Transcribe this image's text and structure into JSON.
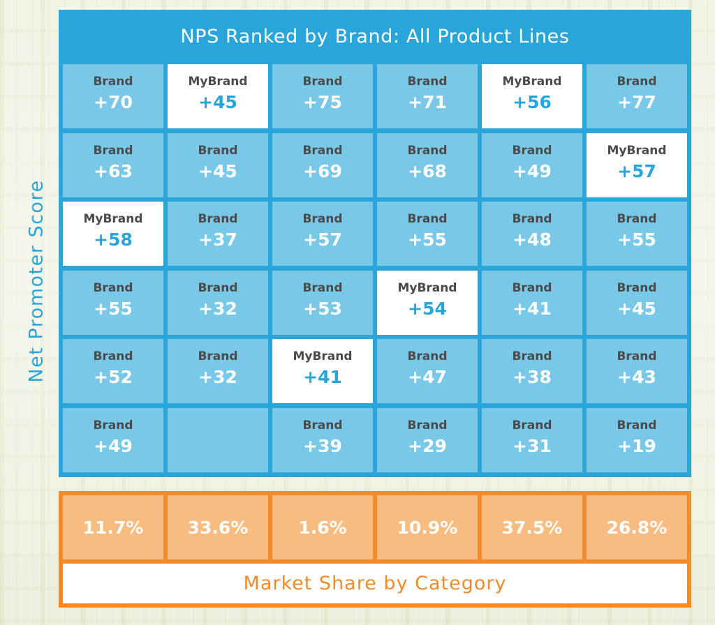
{
  "chart_data": {
    "type": "heatmap",
    "title": "NPS Ranked by Brand: All Product Lines",
    "ylabel": "Net Promoter Score",
    "xlabel": "Market Share by Category",
    "colors": {
      "panel": "#2aa5da",
      "cell": "#79c8e8",
      "highlight_cell": "#ffffff",
      "share_panel": "#f08a2a",
      "share_cell": "#f8bb80"
    },
    "categories": [
      {
        "market_share": "11.7%",
        "entries": [
          {
            "label": "Brand",
            "score": "+70",
            "highlight": false
          },
          {
            "label": "Brand",
            "score": "+63",
            "highlight": false
          },
          {
            "label": "MyBrand",
            "score": "+58",
            "highlight": true
          },
          {
            "label": "Brand",
            "score": "+55",
            "highlight": false
          },
          {
            "label": "Brand",
            "score": "+52",
            "highlight": false
          },
          {
            "label": "Brand",
            "score": "+49",
            "highlight": false
          }
        ]
      },
      {
        "market_share": "33.6%",
        "entries": [
          {
            "label": "MyBrand",
            "score": "+45",
            "highlight": true
          },
          {
            "label": "Brand",
            "score": "+45",
            "highlight": false
          },
          {
            "label": "Brand",
            "score": "+37",
            "highlight": false
          },
          {
            "label": "Brand",
            "score": "+32",
            "highlight": false
          },
          {
            "label": "Brand",
            "score": "+32",
            "highlight": false
          },
          null
        ]
      },
      {
        "market_share": "1.6%",
        "entries": [
          {
            "label": "Brand",
            "score": "+75",
            "highlight": false
          },
          {
            "label": "Brand",
            "score": "+69",
            "highlight": false
          },
          {
            "label": "Brand",
            "score": "+57",
            "highlight": false
          },
          {
            "label": "Brand",
            "score": "+53",
            "highlight": false
          },
          {
            "label": "MyBrand",
            "score": "+41",
            "highlight": true
          },
          {
            "label": "Brand",
            "score": "+39",
            "highlight": false
          }
        ]
      },
      {
        "market_share": "10.9%",
        "entries": [
          {
            "label": "Brand",
            "score": "+71",
            "highlight": false
          },
          {
            "label": "Brand",
            "score": "+68",
            "highlight": false
          },
          {
            "label": "Brand",
            "score": "+55",
            "highlight": false
          },
          {
            "label": "MyBrand",
            "score": "+54",
            "highlight": true
          },
          {
            "label": "Brand",
            "score": "+47",
            "highlight": false
          },
          {
            "label": "Brand",
            "score": "+29",
            "highlight": false
          }
        ]
      },
      {
        "market_share": "37.5%",
        "entries": [
          {
            "label": "MyBrand",
            "score": "+56",
            "highlight": true
          },
          {
            "label": "Brand",
            "score": "+49",
            "highlight": false
          },
          {
            "label": "Brand",
            "score": "+48",
            "highlight": false
          },
          {
            "label": "Brand",
            "score": "+41",
            "highlight": false
          },
          {
            "label": "Brand",
            "score": "+38",
            "highlight": false
          },
          {
            "label": "Brand",
            "score": "+31",
            "highlight": false
          }
        ]
      },
      {
        "market_share": "26.8%",
        "entries": [
          {
            "label": "Brand",
            "score": "+77",
            "highlight": false
          },
          {
            "label": "MyBrand",
            "score": "+57",
            "highlight": true
          },
          {
            "label": "Brand",
            "score": "+55",
            "highlight": false
          },
          {
            "label": "Brand",
            "score": "+45",
            "highlight": false
          },
          {
            "label": "Brand",
            "score": "+43",
            "highlight": false
          },
          {
            "label": "Brand",
            "score": "+19",
            "highlight": false
          }
        ]
      }
    ]
  }
}
